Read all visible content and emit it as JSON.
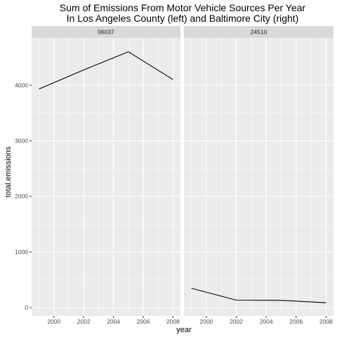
{
  "chart_data": {
    "type": "line",
    "title_line1": "Sum of Emissions From Motor Vehicle Sources Per Year",
    "title_line2": "In Los Angeles County (left) and Baltimore City (right)",
    "xlabel": "year",
    "ylabel": "total.emissions",
    "xlim": [
      1998.5,
      2008.5
    ],
    "ylim": [
      -150,
      4850
    ],
    "x_ticks": [
      2000,
      2002,
      2004,
      2006,
      2008
    ],
    "y_ticks": [
      0,
      1000,
      2000,
      3000,
      4000
    ],
    "grid": true,
    "colors": {
      "panel": "#ebebeb",
      "strip": "#d9d9d9",
      "grid": "#ffffff",
      "line": "#000000"
    },
    "panels": [
      {
        "name": "06037",
        "x": [
          1999,
          2002,
          2005,
          2008
        ],
        "values": [
          3931,
          4274,
          4601,
          4101
        ]
      },
      {
        "name": "24510",
        "x": [
          1999,
          2002,
          2005,
          2008
        ],
        "values": [
          347,
          134,
          130,
          88
        ]
      }
    ]
  }
}
